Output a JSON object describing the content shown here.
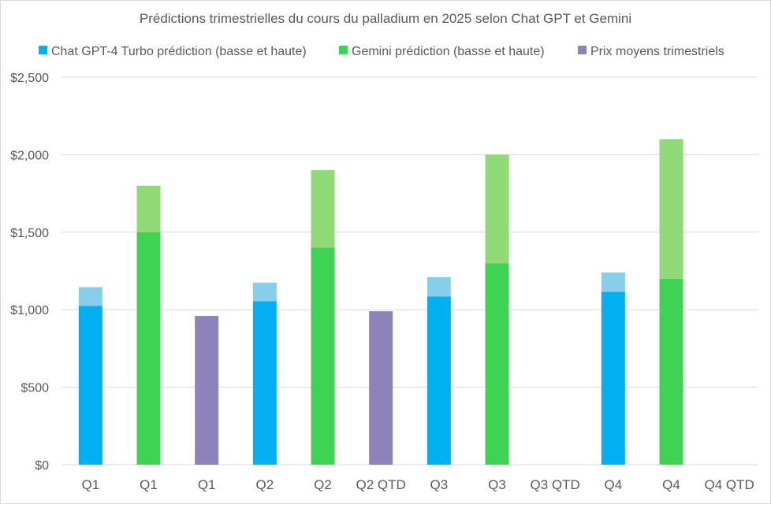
{
  "chart_data": {
    "type": "bar",
    "title": "Prédictions trimestrielles du cours du palladium en 2025 selon Chat GPT et Gemini",
    "xlabel": "",
    "ylabel": "",
    "ylim": [
      0,
      2500
    ],
    "yticks": [
      0,
      500,
      1000,
      1500,
      2000,
      2500
    ],
    "ytick_labels": [
      "$0",
      "$500",
      "$1,000",
      "$1,500",
      "$2,000",
      "$2,500"
    ],
    "grid": true,
    "legend_position": "top",
    "categories": [
      "Q1",
      "Q1",
      "Q1",
      "Q2",
      "Q2",
      "Q2 QTD",
      "Q3",
      "Q3",
      "Q3 QTD",
      "Q4",
      "Q4",
      "Q4 QTD"
    ],
    "legend": [
      {
        "name": "Chat GPT-4 Turbo prédiction (basse et haute)",
        "color": "#00B0F0"
      },
      {
        "name": "Gemini prédiction (basse et haute)",
        "color": "#3FD354"
      },
      {
        "name": "Prix moyens trimestriels",
        "color": "#8E83B9"
      }
    ],
    "series": [
      {
        "kind": "chatgpt",
        "low_color": "#00B0F0",
        "high_color": "#87CEEB",
        "low": [
          1025,
          null,
          null,
          1055,
          null,
          null,
          1085,
          null,
          null,
          1115,
          null,
          null
        ],
        "high": [
          1145,
          null,
          null,
          1175,
          null,
          null,
          1210,
          null,
          null,
          1240,
          null,
          null
        ]
      },
      {
        "kind": "gemini",
        "low_color": "#3FD354",
        "high_color": "#8FD977",
        "low": [
          null,
          1500,
          null,
          null,
          1400,
          null,
          null,
          1300,
          null,
          null,
          1200,
          null
        ],
        "high": [
          null,
          1800,
          null,
          null,
          1900,
          null,
          null,
          2000,
          null,
          null,
          2100,
          null
        ]
      },
      {
        "kind": "average",
        "color": "#8E83B9",
        "values": [
          null,
          null,
          960,
          null,
          null,
          990,
          null,
          null,
          null,
          null,
          null,
          null
        ]
      }
    ]
  }
}
